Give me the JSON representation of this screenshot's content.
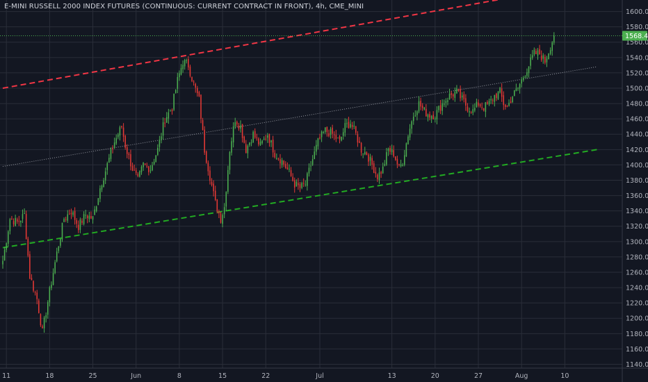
{
  "chart_data": {
    "type": "candlestick",
    "title": "E-MINI RUSSELL 2000 INDEX FUTURES (CONTINUOUS: CURRENT CONTRACT IN FRONT), 4h, CME_MINI",
    "last_price_label": "1568.4",
    "ylim": [
      1135,
      1615
    ],
    "y_ticks": [
      1140.0,
      1160.0,
      1180.0,
      1200.0,
      1220.0,
      1240.0,
      1260.0,
      1280.0,
      1300.0,
      1320.0,
      1340.0,
      1360.0,
      1380.0,
      1400.0,
      1420.0,
      1440.0,
      1460.0,
      1480.0,
      1500.0,
      1520.0,
      1540.0,
      1560.0,
      1580.0,
      1600.0
    ],
    "x_ticks": [
      {
        "label": "11",
        "bar": 2
      },
      {
        "label": "18",
        "bar": 26
      },
      {
        "label": "25",
        "bar": 50
      },
      {
        "label": "Jun",
        "bar": 74
      },
      {
        "label": "8",
        "bar": 98
      },
      {
        "label": "15",
        "bar": 122
      },
      {
        "label": "22",
        "bar": 146
      },
      {
        "label": "Jul",
        "bar": 176
      },
      {
        "label": "13",
        "bar": 216
      },
      {
        "label": "20",
        "bar": 240
      },
      {
        "label": "27",
        "bar": 264
      },
      {
        "label": "Aug",
        "bar": 288
      },
      {
        "label": "10",
        "bar": 312
      }
    ],
    "bars_total": 330,
    "close_path": [
      [
        0,
        1275
      ],
      [
        4,
        1330
      ],
      [
        8,
        1325
      ],
      [
        12,
        1335
      ],
      [
        15,
        1255
      ],
      [
        19,
        1225
      ],
      [
        22,
        1182
      ],
      [
        26,
        1235
      ],
      [
        30,
        1285
      ],
      [
        34,
        1330
      ],
      [
        38,
        1340
      ],
      [
        42,
        1320
      ],
      [
        46,
        1335
      ],
      [
        50,
        1330
      ],
      [
        54,
        1370
      ],
      [
        58,
        1400
      ],
      [
        62,
        1430
      ],
      [
        66,
        1450
      ],
      [
        68,
        1425
      ],
      [
        72,
        1395
      ],
      [
        75,
        1380
      ],
      [
        78,
        1400
      ],
      [
        82,
        1395
      ],
      [
        86,
        1420
      ],
      [
        90,
        1460
      ],
      [
        94,
        1475
      ],
      [
        97,
        1510
      ],
      [
        100,
        1535
      ],
      [
        103,
        1530
      ],
      [
        106,
        1505
      ],
      [
        109,
        1485
      ],
      [
        112,
        1420
      ],
      [
        115,
        1385
      ],
      [
        118,
        1350
      ],
      [
        121,
        1330
      ],
      [
        123,
        1345
      ],
      [
        126,
        1420
      ],
      [
        129,
        1460
      ],
      [
        132,
        1450
      ],
      [
        135,
        1420
      ],
      [
        139,
        1440
      ],
      [
        143,
        1425
      ],
      [
        147,
        1440
      ],
      [
        151,
        1415
      ],
      [
        155,
        1405
      ],
      [
        159,
        1390
      ],
      [
        162,
        1375
      ],
      [
        165,
        1370
      ],
      [
        168,
        1375
      ],
      [
        171,
        1400
      ],
      [
        175,
        1430
      ],
      [
        179,
        1445
      ],
      [
        183,
        1440
      ],
      [
        187,
        1430
      ],
      [
        190,
        1450
      ],
      [
        193,
        1455
      ],
      [
        196,
        1440
      ],
      [
        199,
        1420
      ],
      [
        202,
        1415
      ],
      [
        205,
        1400
      ],
      [
        208,
        1385
      ],
      [
        211,
        1395
      ],
      [
        214,
        1420
      ],
      [
        217,
        1415
      ],
      [
        220,
        1395
      ],
      [
        222,
        1405
      ],
      [
        225,
        1440
      ],
      [
        228,
        1465
      ],
      [
        231,
        1480
      ],
      [
        234,
        1470
      ],
      [
        237,
        1465
      ],
      [
        240,
        1465
      ],
      [
        244,
        1480
      ],
      [
        248,
        1490
      ],
      [
        252,
        1495
      ],
      [
        255,
        1485
      ],
      [
        258,
        1475
      ],
      [
        261,
        1470
      ],
      [
        264,
        1480
      ],
      [
        267,
        1475
      ],
      [
        270,
        1480
      ],
      [
        273,
        1490
      ],
      [
        276,
        1495
      ],
      [
        278,
        1480
      ],
      [
        280,
        1475
      ],
      [
        283,
        1490
      ],
      [
        286,
        1500
      ],
      [
        289,
        1515
      ],
      [
        292,
        1530
      ],
      [
        295,
        1545
      ],
      [
        298,
        1545
      ],
      [
        301,
        1535
      ],
      [
        304,
        1555
      ],
      [
        306,
        1568
      ]
    ],
    "lines": [
      {
        "name": "upper channel",
        "color": "#f23645",
        "style": "dashed",
        "points": [
          [
            0,
            1500
          ],
          [
            310,
            1630
          ]
        ]
      },
      {
        "name": "mid channel",
        "color": "#9598a1",
        "style": "dotted",
        "points": [
          [
            0,
            1398
          ],
          [
            330,
            1528
          ]
        ]
      },
      {
        "name": "lower channel",
        "color": "#22ab22",
        "style": "dashed",
        "points": [
          [
            0,
            1292
          ],
          [
            330,
            1420
          ]
        ]
      }
    ],
    "colors": {
      "up": "#26a69a",
      "down": "#ef5350",
      "bull_wick": "#4caf50",
      "bear_wick": "#e53935",
      "background": "#131722",
      "grid": "#2a2e39",
      "price_tag": "#4caf50",
      "last_line": "#4caf50"
    }
  }
}
